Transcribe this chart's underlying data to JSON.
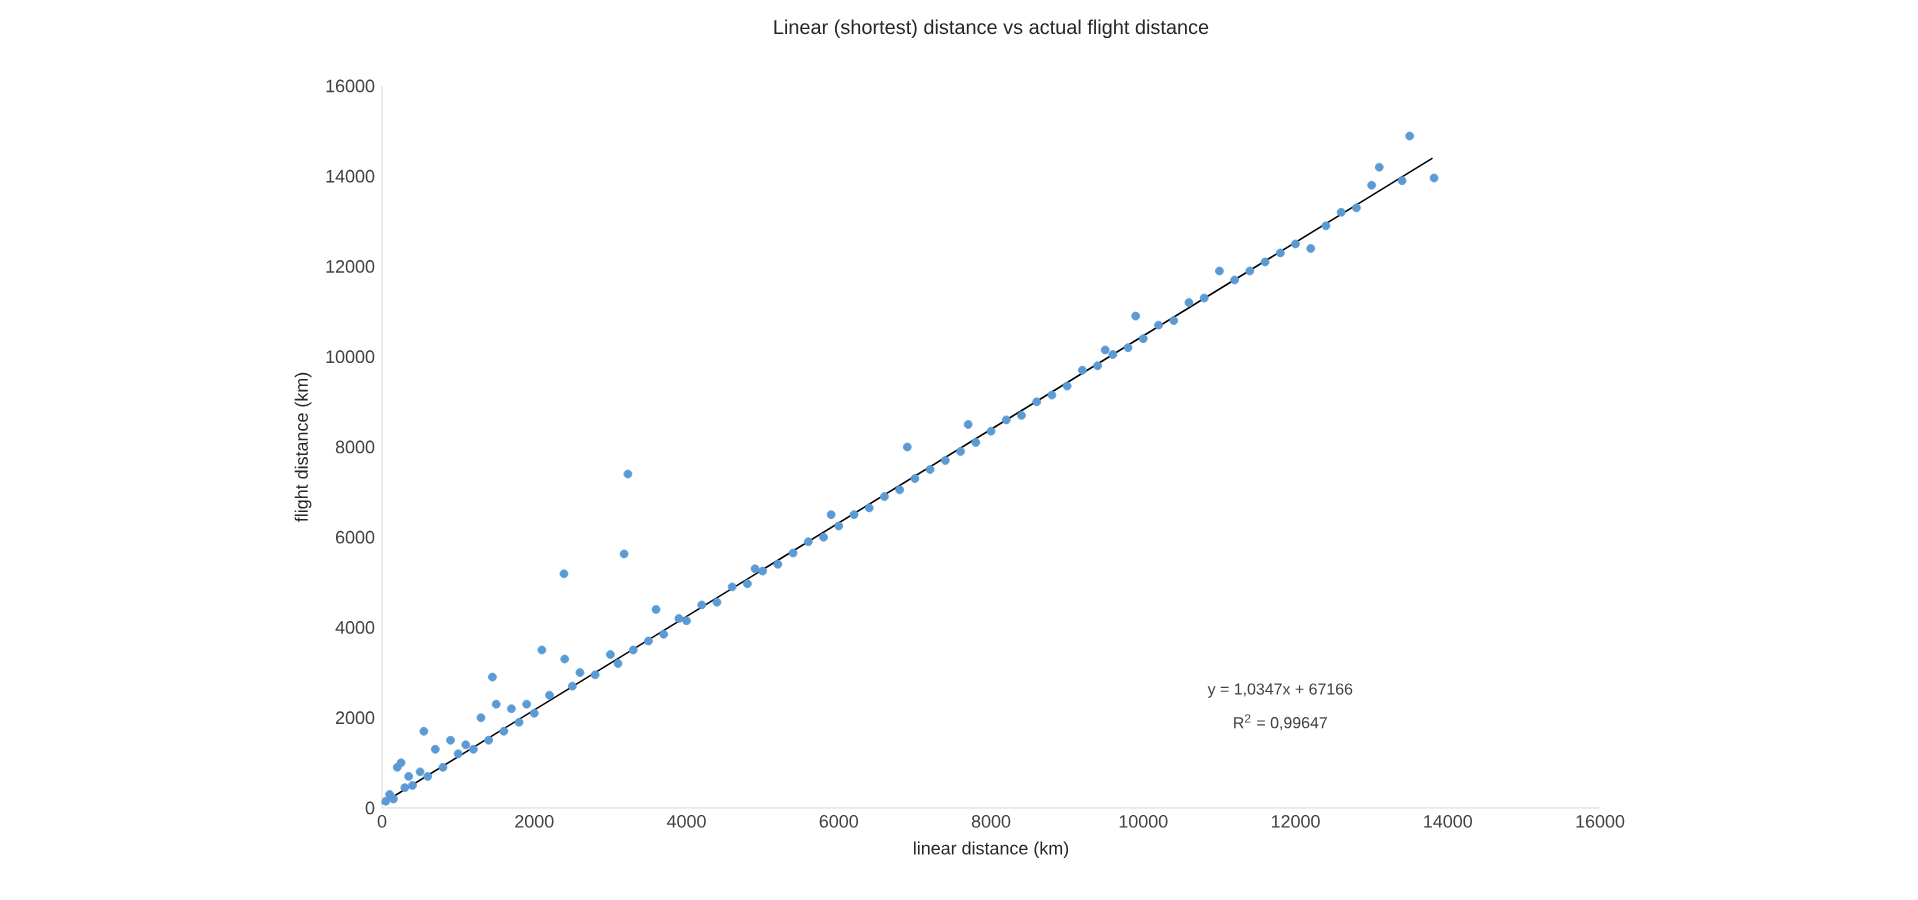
{
  "chart_data": {
    "type": "scatter",
    "title": "Linear (shortest) distance vs actual flight distance",
    "xlabel": "linear distance (km)",
    "ylabel": "flight distance (km)",
    "xlim": [
      0,
      16000
    ],
    "ylim": [
      0,
      16000
    ],
    "xticks": [
      0,
      2000,
      4000,
      6000,
      8000,
      10000,
      12000,
      14000,
      16000
    ],
    "yticks": [
      0,
      2000,
      4000,
      6000,
      8000,
      10000,
      12000,
      14000,
      16000
    ],
    "series": [
      {
        "color": "#5b9bd5",
        "x": [
          50,
          100,
          150,
          200,
          250,
          300,
          350,
          400,
          500,
          550,
          600,
          700,
          800,
          900,
          1000,
          1100,
          1200,
          1300,
          1400,
          1450,
          1500,
          1600,
          1700,
          1800,
          1900,
          2000,
          2100,
          2200,
          2390,
          2400,
          2500,
          2600,
          2800,
          3000,
          3100,
          3180,
          3230,
          3300,
          3500,
          3600,
          3700,
          3900,
          4000,
          4200,
          4400,
          4600,
          4800,
          4900,
          5000,
          5200,
          5400,
          5600,
          5800,
          5900,
          6000,
          6200,
          6400,
          6600,
          6800,
          6900,
          7000,
          7200,
          7400,
          7600,
          7700,
          7800,
          8000,
          8200,
          8400,
          8600,
          8800,
          9000,
          9200,
          9400,
          9500,
          9600,
          9800,
          9900,
          10000,
          10200,
          10400,
          10600,
          10800,
          11000,
          11200,
          11400,
          11600,
          11800,
          12000,
          12200,
          12400,
          12600,
          12800,
          13000,
          13100,
          13400,
          13500,
          13820
        ],
        "values": [
          150,
          300,
          200,
          900,
          1000,
          450,
          700,
          500,
          800,
          1700,
          700,
          1300,
          900,
          1500,
          1200,
          1400,
          1300,
          2000,
          1500,
          2900,
          2300,
          1700,
          2200,
          1900,
          2300,
          2100,
          3500,
          2500,
          5190,
          3300,
          2700,
          3000,
          2950,
          3400,
          3200,
          5630,
          7400,
          3500,
          3700,
          4400,
          3850,
          4200,
          4150,
          4500,
          4560,
          4900,
          4970,
          5300,
          5250,
          5400,
          5650,
          5900,
          6000,
          6500,
          6250,
          6500,
          6650,
          6900,
          7050,
          8000,
          7300,
          7500,
          7700,
          7900,
          8500,
          8100,
          8350,
          8600,
          8700,
          9000,
          9150,
          9350,
          9700,
          9800,
          10150,
          10050,
          10200,
          10900,
          10400,
          10700,
          10800,
          11200,
          11300,
          11900,
          11700,
          11900,
          12100,
          12300,
          12500,
          12400,
          12900,
          13200,
          13300,
          13800,
          14200,
          13900,
          14890,
          13960
        ]
      },
      {
        "type": "line",
        "color": "#000000",
        "x": [
          0,
          13800
        ],
        "values": [
          100,
          14400
        ]
      }
    ],
    "annotations": [
      "y = 1,0347x + 67166",
      "R$^{2}$ = 0,99647"
    ]
  }
}
